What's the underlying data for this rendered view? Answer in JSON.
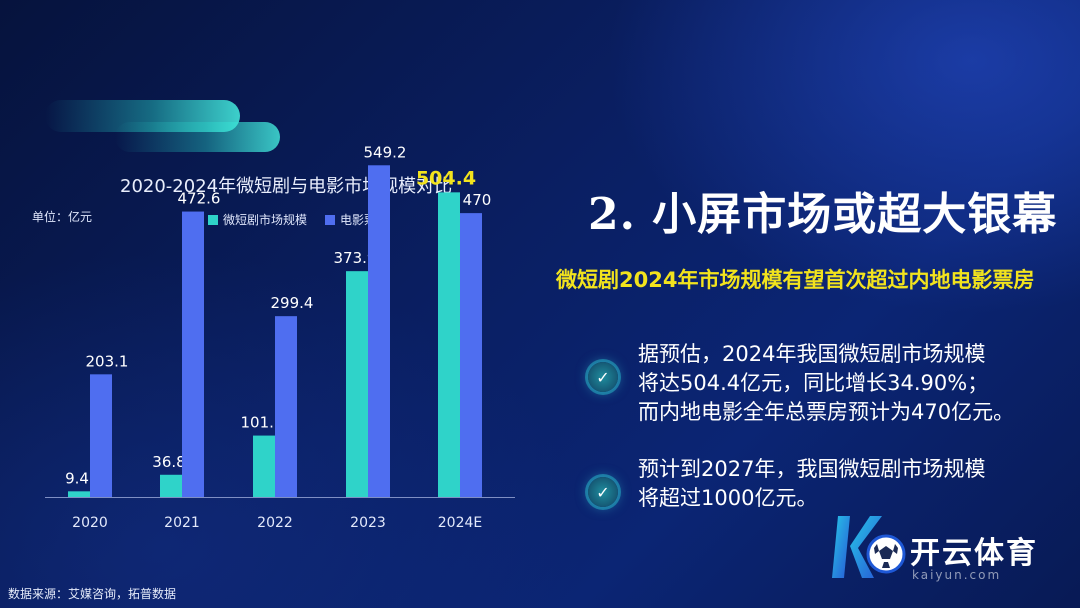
{
  "chart_data": {
    "type": "bar",
    "title": "2020-2024年微短剧与电影市场规模对比",
    "unit": "单位：亿元",
    "categories": [
      "2020",
      "2021",
      "2022",
      "2023",
      "2024E"
    ],
    "series": [
      {
        "name": "微短剧市场规模",
        "values": [
          9.4,
          36.8,
          101.7,
          373.9,
          504.4
        ],
        "color": "#2fd3c9",
        "labels": [
          "9.4",
          "36.8",
          "101.7",
          "373.9",
          "504.4"
        ]
      },
      {
        "name": "电影票房",
        "values": [
          203.1,
          472.6,
          299.4,
          549.2,
          470
        ],
        "color": "#4f6ef0",
        "labels": [
          "203.1",
          "472.6",
          "299.4",
          "549.2",
          "470"
        ]
      }
    ],
    "ylim": [
      0,
      600
    ],
    "highlight_label_color": "#f2e31d",
    "label_color": "#ffffff",
    "grid": false,
    "legend": "top"
  },
  "source": "数据来源：艾媒咨询，拓普数据",
  "headline": "2. 小屏市场或超大银幕",
  "subhead": "微短剧2024年市场规模有望首次超过内地电影票房",
  "bullets": [
    {
      "lines": [
        "据预估，2024年我国微短剧市场规模",
        "将达504.4亿元，同比增长34.90%；",
        "而内地电影全年总票房预计为470亿元。"
      ]
    },
    {
      "lines": [
        "预计到2027年，我国微短剧市场规模",
        "将超过1000亿元。"
      ]
    }
  ],
  "check_icon": "check-circle-icon",
  "logo": {
    "name": "开云体育",
    "url": "kaiyun.com",
    "icon": "soccer-ball-logo"
  }
}
